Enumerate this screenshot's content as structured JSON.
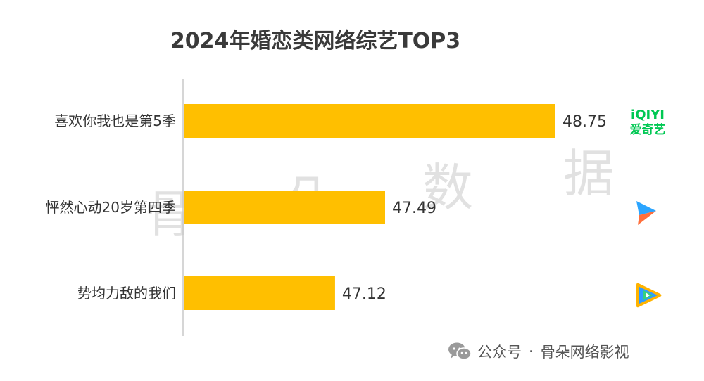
{
  "chart_data": {
    "type": "bar",
    "orientation": "horizontal",
    "title": "2024年婚恋类网络综艺TOP3",
    "categories": [
      "喜欢你我也是第5季",
      "怦然心动20岁第四季",
      "势均力敌的我们"
    ],
    "values": [
      48.75,
      47.49,
      47.12
    ],
    "value_labels": [
      "48.75",
      "47.49",
      "47.12"
    ],
    "bar_color": "#FFBF00",
    "grid": false,
    "platform_logos": [
      {
        "icon": "iqiyi-logo",
        "lines": [
          "iQIYI",
          "爱奇艺"
        ],
        "color": "#00C853"
      },
      {
        "icon": "youku-logo"
      },
      {
        "icon": "tencent-video-logo"
      }
    ]
  },
  "watermark": {
    "chars": [
      "骨",
      "朵",
      "数",
      "据"
    ]
  },
  "footer": {
    "icon": "wechat-icon",
    "account_label": "公众号",
    "separator": "·",
    "account_name": "骨朵网络影视"
  }
}
